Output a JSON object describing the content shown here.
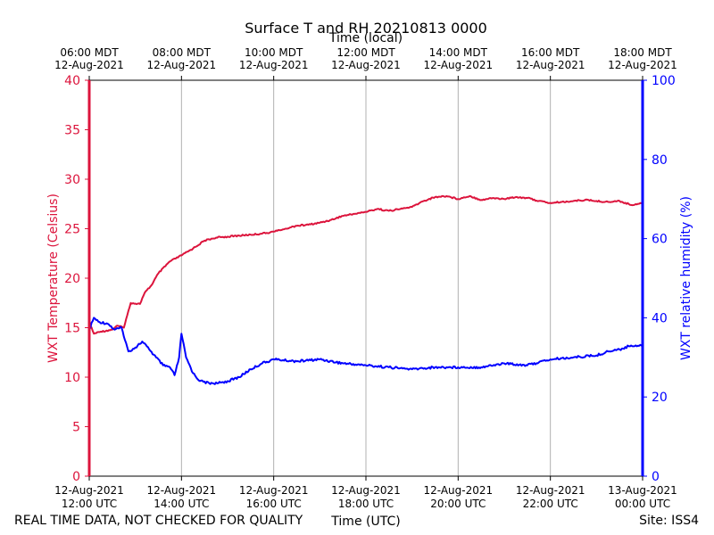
{
  "chart_data": {
    "type": "line",
    "title": "Surface T and RH 20210813 0000",
    "top_axis_label": "Time (local)",
    "xlabel": "Time (UTC)",
    "ylabel_left": "WXT Temperature (Celsius)",
    "ylabel_right": "WXT relative humidity (%)",
    "x_range_hours_utc": [
      12,
      24
    ],
    "ylim_left": [
      0,
      40
    ],
    "ylim_right": [
      0,
      100
    ],
    "left_ticks": [
      0,
      5,
      10,
      15,
      20,
      25,
      30,
      35,
      40
    ],
    "right_ticks": [
      0,
      20,
      40,
      60,
      80,
      100
    ],
    "vertical_grid": true,
    "colors": {
      "temperature": "#dc143c",
      "humidity": "#0000ff",
      "grid": "#b0b0b0"
    },
    "bottom_ticks": [
      {
        "hour": 12,
        "date": "12-Aug-2021",
        "time": "12:00 UTC"
      },
      {
        "hour": 14,
        "date": "12-Aug-2021",
        "time": "14:00 UTC"
      },
      {
        "hour": 16,
        "date": "12-Aug-2021",
        "time": "16:00 UTC"
      },
      {
        "hour": 18,
        "date": "12-Aug-2021",
        "time": "18:00 UTC"
      },
      {
        "hour": 20,
        "date": "12-Aug-2021",
        "time": "20:00 UTC"
      },
      {
        "hour": 22,
        "date": "12-Aug-2021",
        "time": "22:00 UTC"
      },
      {
        "hour": 24,
        "date": "13-Aug-2021",
        "time": "00:00 UTC"
      }
    ],
    "top_ticks": [
      {
        "hour": 12,
        "time": "06:00 MDT",
        "date": "12-Aug-2021"
      },
      {
        "hour": 14,
        "time": "08:00 MDT",
        "date": "12-Aug-2021"
      },
      {
        "hour": 16,
        "time": "10:00 MDT",
        "date": "12-Aug-2021"
      },
      {
        "hour": 18,
        "time": "12:00 MDT",
        "date": "12-Aug-2021"
      },
      {
        "hour": 20,
        "time": "14:00 MDT",
        "date": "12-Aug-2021"
      },
      {
        "hour": 22,
        "time": "16:00 MDT",
        "date": "12-Aug-2021"
      },
      {
        "hour": 24,
        "time": "18:00 MDT",
        "date": "12-Aug-2021"
      }
    ],
    "series": [
      {
        "name": "WXT Temperature (Celsius)",
        "axis": "left",
        "x": [
          12.0,
          12.1,
          12.25,
          12.5,
          12.6,
          12.75,
          12.9,
          13.1,
          13.2,
          13.35,
          13.5,
          13.75,
          14.0,
          14.25,
          14.5,
          14.75,
          15.0,
          15.5,
          15.75,
          16.0,
          16.25,
          16.5,
          16.75,
          17.0,
          17.25,
          17.5,
          17.75,
          18.0,
          18.25,
          18.5,
          18.75,
          19.0,
          19.25,
          19.5,
          19.75,
          20.0,
          20.25,
          20.5,
          20.75,
          21.0,
          21.25,
          21.5,
          21.75,
          22.0,
          22.25,
          22.5,
          22.75,
          23.0,
          23.25,
          23.5,
          23.75,
          24.0
        ],
        "values": [
          15.5,
          14.4,
          14.6,
          14.8,
          15.2,
          15.0,
          17.5,
          17.4,
          18.5,
          19.3,
          20.5,
          21.7,
          22.3,
          23.0,
          23.8,
          24.1,
          24.2,
          24.4,
          24.5,
          24.7,
          25.0,
          25.3,
          25.4,
          25.6,
          25.9,
          26.3,
          26.5,
          26.7,
          27.0,
          26.8,
          27.0,
          27.2,
          27.8,
          28.2,
          28.3,
          28.0,
          28.3,
          27.9,
          28.1,
          28.0,
          28.2,
          28.1,
          27.8,
          27.6,
          27.7,
          27.8,
          27.9,
          27.8,
          27.7,
          27.8,
          27.4,
          27.6
        ]
      },
      {
        "name": "WXT relative humidity (%)",
        "axis": "right",
        "x": [
          12.0,
          12.1,
          12.2,
          12.4,
          12.55,
          12.7,
          12.85,
          13.0,
          13.15,
          13.3,
          13.45,
          13.6,
          13.75,
          13.85,
          13.95,
          14.0,
          14.1,
          14.25,
          14.4,
          14.6,
          14.8,
          15.0,
          15.25,
          15.5,
          15.75,
          16.0,
          16.5,
          17.0,
          17.5,
          18.0,
          18.5,
          19.0,
          19.5,
          20.0,
          20.5,
          21.0,
          21.5,
          22.0,
          22.5,
          23.0,
          23.25,
          23.5,
          23.75,
          24.0
        ],
        "values": [
          37,
          40,
          39,
          38.5,
          37,
          37.5,
          31.5,
          32.5,
          34,
          32,
          30,
          28,
          27.5,
          25.5,
          30,
          36,
          30,
          26,
          24,
          23.5,
          23.5,
          24,
          25,
          27,
          28.5,
          29.5,
          29,
          29.5,
          28.5,
          28,
          27.5,
          27,
          27.5,
          27.5,
          27.5,
          28.5,
          28,
          29.5,
          30,
          30.5,
          31.5,
          32,
          33,
          33
        ]
      }
    ]
  },
  "footer": {
    "disclaimer": "REAL TIME DATA, NOT CHECKED FOR QUALITY",
    "site": "Site: ISS4"
  }
}
